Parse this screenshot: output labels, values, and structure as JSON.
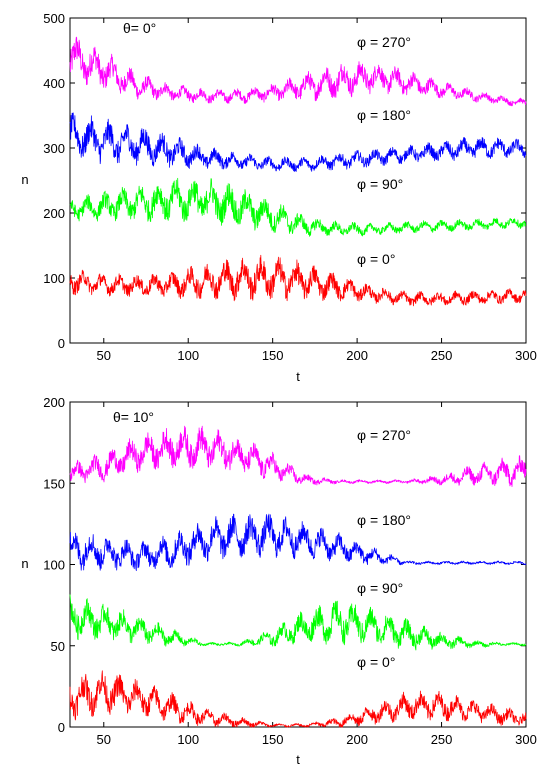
{
  "colors": {
    "magenta": "#ff00ff",
    "blue": "#0000ff",
    "green": "#00ff00",
    "red": "#ff0000"
  },
  "chart_data": [
    {
      "type": "line",
      "title": "",
      "xlabel": "t",
      "ylabel": "n",
      "xlim": [
        30,
        300
      ],
      "ylim": [
        0,
        500
      ],
      "xticks": [
        "50",
        "100",
        "150",
        "200",
        "250",
        "300"
      ],
      "yticks": [
        "0",
        "100",
        "200",
        "300",
        "400",
        "500"
      ],
      "annotations": {
        "theta": "θ= 0°",
        "phi_labels": [
          "φ = 270°",
          "φ = 180°",
          "φ = 90°",
          "φ = 0°"
        ]
      },
      "series": [
        {
          "color": "magenta",
          "x": [
            30,
            50,
            70,
            90,
            110,
            130,
            150,
            170,
            190,
            210,
            230,
            250,
            270,
            290,
            300
          ],
          "y": [
            440,
            420,
            395,
            385,
            380,
            380,
            385,
            395,
            405,
            410,
            400,
            390,
            380,
            372,
            370
          ],
          "osc_amp": [
            35,
            28,
            18,
            12,
            10,
            10,
            12,
            20,
            25,
            22,
            18,
            12,
            8,
            6,
            5
          ]
        },
        {
          "color": "blue",
          "x": [
            30,
            50,
            70,
            90,
            110,
            130,
            150,
            170,
            190,
            210,
            230,
            250,
            270,
            290,
            300
          ],
          "y": [
            320,
            310,
            305,
            295,
            285,
            280,
            275,
            275,
            280,
            285,
            290,
            295,
            300,
            300,
            298
          ],
          "osc_amp": [
            30,
            30,
            28,
            22,
            16,
            12,
            10,
            10,
            12,
            12,
            12,
            14,
            16,
            14,
            12
          ]
        },
        {
          "color": "green",
          "x": [
            30,
            50,
            70,
            90,
            110,
            130,
            150,
            170,
            190,
            210,
            230,
            250,
            270,
            290,
            300
          ],
          "y": [
            205,
            210,
            215,
            220,
            220,
            210,
            195,
            180,
            175,
            175,
            178,
            180,
            182,
            185,
            185
          ],
          "osc_amp": [
            15,
            20,
            25,
            30,
            32,
            30,
            22,
            14,
            10,
            8,
            8,
            8,
            8,
            8,
            8
          ]
        },
        {
          "color": "red",
          "x": [
            30,
            50,
            70,
            90,
            110,
            130,
            150,
            170,
            190,
            210,
            230,
            250,
            270,
            290,
            300
          ],
          "y": [
            95,
            90,
            88,
            90,
            95,
            100,
            100,
            95,
            85,
            75,
            68,
            68,
            70,
            72,
            73
          ],
          "osc_amp": [
            18,
            15,
            15,
            18,
            25,
            30,
            30,
            25,
            18,
            12,
            10,
            10,
            10,
            10,
            10
          ]
        }
      ]
    },
    {
      "type": "line",
      "title": "",
      "xlabel": "t",
      "ylabel": "n",
      "xlim": [
        30,
        300
      ],
      "ylim": [
        0,
        200
      ],
      "xticks": [
        "50",
        "100",
        "150",
        "200",
        "250",
        "300"
      ],
      "yticks": [
        "0",
        "50",
        "100",
        "150",
        "200"
      ],
      "annotations": {
        "theta": "θ= 10°",
        "phi_labels": [
          "φ = 270°",
          "φ = 180°",
          "φ = 90°",
          "φ = 0°"
        ]
      },
      "series": [
        {
          "color": "magenta",
          "x": [
            30,
            50,
            70,
            90,
            110,
            130,
            150,
            170,
            190,
            210,
            230,
            250,
            270,
            290,
            300
          ],
          "y": [
            156,
            160,
            168,
            172,
            172,
            168,
            160,
            152,
            151,
            151,
            151,
            152,
            155,
            157,
            158
          ],
          "osc_amp": [
            6,
            8,
            10,
            12,
            12,
            10,
            8,
            3,
            1,
            1,
            1,
            3,
            6,
            8,
            8
          ]
        },
        {
          "color": "blue",
          "x": [
            30,
            50,
            70,
            90,
            110,
            130,
            150,
            170,
            190,
            210,
            230,
            250,
            270,
            290,
            300
          ],
          "y": [
            110,
            108,
            105,
            108,
            115,
            118,
            118,
            115,
            110,
            105,
            101,
            101,
            101,
            101,
            101
          ],
          "osc_amp": [
            12,
            10,
            8,
            10,
            12,
            12,
            12,
            10,
            8,
            5,
            1,
            1,
            1,
            1,
            1
          ]
        },
        {
          "color": "green",
          "x": [
            30,
            50,
            70,
            90,
            110,
            130,
            150,
            170,
            190,
            210,
            230,
            250,
            270,
            290,
            300
          ],
          "y": [
            68,
            65,
            60,
            55,
            51,
            51,
            55,
            62,
            65,
            62,
            57,
            53,
            51,
            51,
            51
          ],
          "osc_amp": [
            12,
            10,
            8,
            5,
            1,
            1,
            5,
            10,
            12,
            10,
            8,
            5,
            2,
            1,
            1
          ]
        },
        {
          "color": "red",
          "x": [
            30,
            50,
            70,
            90,
            110,
            130,
            150,
            170,
            190,
            210,
            230,
            250,
            270,
            290,
            300
          ],
          "y": [
            18,
            22,
            18,
            12,
            6,
            3,
            1,
            1,
            3,
            8,
            13,
            13,
            10,
            6,
            5
          ],
          "osc_amp": [
            12,
            12,
            10,
            8,
            5,
            3,
            1,
            1,
            3,
            6,
            8,
            8,
            6,
            5,
            4
          ]
        }
      ]
    }
  ]
}
